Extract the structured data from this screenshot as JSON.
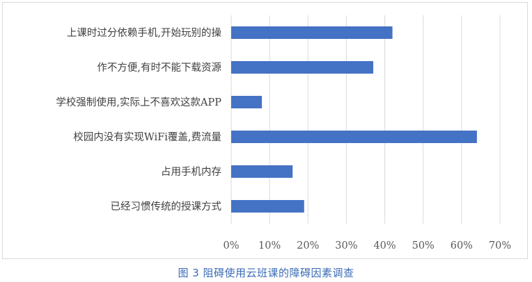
{
  "caption": "图 3 阻碍使用云班课的障碍因素调查",
  "chart_data": {
    "type": "bar",
    "orientation": "horizontal",
    "title": "",
    "xlabel": "",
    "ylabel": "",
    "categories": [
      "上课时过分依赖手机,开始玩别的操",
      "作不方便,有时不能下载资源",
      "学校强制使用,实际上不喜欢这款APP",
      "校园内没有实现WiFi覆盖,费流量",
      "占用手机内存",
      "已经习惯传统的授课方式"
    ],
    "values": [
      42,
      37,
      8,
      64,
      16,
      19
    ],
    "xlim": [
      0,
      70
    ],
    "xticks": [
      0,
      10,
      20,
      30,
      40,
      50,
      60,
      70
    ],
    "tick_labels": [
      "0%",
      "10%",
      "20%",
      "30%",
      "40%",
      "50%",
      "60%",
      "70%"
    ],
    "bar_color": "#4472c4",
    "grid": true,
    "legend": "none"
  }
}
